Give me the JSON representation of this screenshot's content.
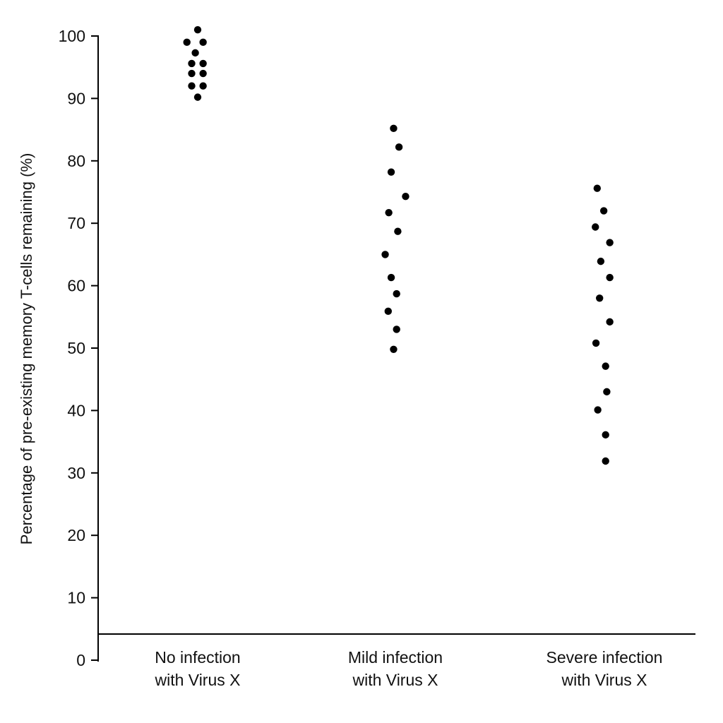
{
  "chart_data": {
    "type": "scatter",
    "title": "",
    "xlabel": "",
    "ylabel": "Percentage of pre-existing memory T-cells remaining (%)",
    "ylim": [
      0,
      100
    ],
    "yticks": [
      "0",
      "10",
      "20",
      "30",
      "40",
      "50",
      "60",
      "70",
      "80",
      "90",
      "100"
    ],
    "grid": false,
    "legend": "none",
    "categories": [
      [
        "No infection",
        "with Virus X"
      ],
      [
        "Mild infection",
        "with Virus X"
      ],
      [
        "Severe infection",
        "with Virus X"
      ]
    ],
    "points": [
      {
        "category": 0,
        "offset": 0.0,
        "y": 101
      },
      {
        "category": 0,
        "offset": -0.9,
        "y": 99
      },
      {
        "category": 0,
        "offset": 0.45,
        "y": 99
      },
      {
        "category": 0,
        "offset": -0.2,
        "y": 97.3
      },
      {
        "category": 0,
        "offset": -0.5,
        "y": 95.6
      },
      {
        "category": 0,
        "offset": 0.45,
        "y": 95.6
      },
      {
        "category": 0,
        "offset": -0.5,
        "y": 94
      },
      {
        "category": 0,
        "offset": 0.45,
        "y": 94
      },
      {
        "category": 0,
        "offset": -0.5,
        "y": 92
      },
      {
        "category": 0,
        "offset": 0.45,
        "y": 92
      },
      {
        "category": 0,
        "offset": 0.0,
        "y": 90.2
      },
      {
        "category": 1,
        "offset": -0.15,
        "y": 85.2
      },
      {
        "category": 1,
        "offset": 0.3,
        "y": 82.2
      },
      {
        "category": 1,
        "offset": -0.35,
        "y": 78.2
      },
      {
        "category": 1,
        "offset": 0.85,
        "y": 74.3
      },
      {
        "category": 1,
        "offset": -0.55,
        "y": 71.7
      },
      {
        "category": 1,
        "offset": 0.2,
        "y": 68.7
      },
      {
        "category": 1,
        "offset": -0.85,
        "y": 65
      },
      {
        "category": 1,
        "offset": -0.35,
        "y": 61.3
      },
      {
        "category": 1,
        "offset": 0.1,
        "y": 58.7
      },
      {
        "category": 1,
        "offset": -0.6,
        "y": 55.9
      },
      {
        "category": 1,
        "offset": 0.1,
        "y": 53
      },
      {
        "category": 1,
        "offset": -0.15,
        "y": 49.8
      },
      {
        "category": 2,
        "offset": -0.6,
        "y": 75.6
      },
      {
        "category": 2,
        "offset": -0.05,
        "y": 72
      },
      {
        "category": 2,
        "offset": -0.75,
        "y": 69.4
      },
      {
        "category": 2,
        "offset": 0.45,
        "y": 66.9
      },
      {
        "category": 2,
        "offset": -0.3,
        "y": 63.9
      },
      {
        "category": 2,
        "offset": 0.45,
        "y": 61.3
      },
      {
        "category": 2,
        "offset": -0.4,
        "y": 58
      },
      {
        "category": 2,
        "offset": 0.45,
        "y": 54.2
      },
      {
        "category": 2,
        "offset": -0.7,
        "y": 50.8
      },
      {
        "category": 2,
        "offset": 0.1,
        "y": 47.1
      },
      {
        "category": 2,
        "offset": 0.2,
        "y": 43
      },
      {
        "category": 2,
        "offset": -0.55,
        "y": 40.1
      },
      {
        "category": 2,
        "offset": 0.1,
        "y": 36.1
      },
      {
        "category": 2,
        "offset": 0.1,
        "y": 31.9
      }
    ]
  }
}
